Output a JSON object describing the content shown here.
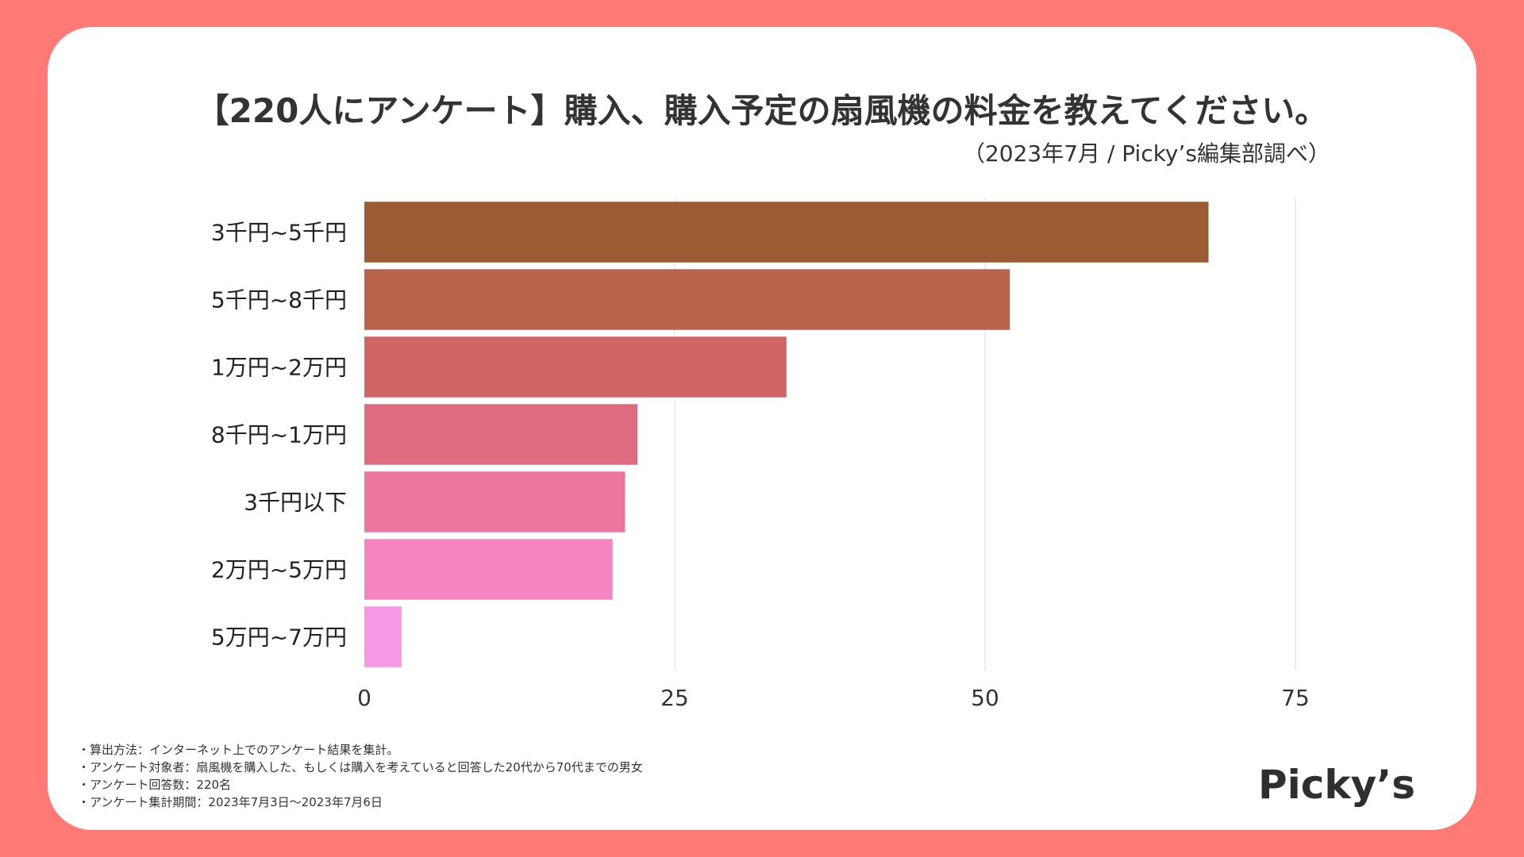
{
  "title": "【220人にアンケート】購入、購入予定の扇風機の料金を教えてください。",
  "subtitle": "（2023年7月 / Picky’s編集部調べ）",
  "notes": [
    "・算出方法：インターネット上でのアンケート結果を集計。",
    "・アンケート対象者：扇風機を購入した、もしくは購入を考えていると回答した20代から70代までの男女",
    "・アンケート回答数：220名",
    "・アンケート集計期間：2023年7月3日〜2023年7月6日"
  ],
  "logo": "Picky’s",
  "colors": {
    "background": "#ff7a74",
    "card": "#ffffff",
    "grid": "#e6e6e6",
    "text": "#333333"
  },
  "chart_data": {
    "type": "bar",
    "orientation": "horizontal",
    "title": "【220人にアンケート】購入、購入予定の扇風機の料金を教えてください。",
    "categories": [
      "3千円~5千円",
      "5千円~8千円",
      "1万円~2万円",
      "8千円~1万円",
      "3千円以下",
      "2万円~5万円",
      "5万円~7万円"
    ],
    "values": [
      68,
      52,
      34,
      22,
      21,
      20,
      3
    ],
    "bar_colors": [
      "#9c5b33",
      "#b9634d",
      "#cf6565",
      "#df6b80",
      "#ec76a0",
      "#f585c2",
      "#f798e6"
    ],
    "xlim": [
      0,
      75
    ],
    "xticks": [
      0,
      25,
      50,
      75
    ],
    "xlabel": "",
    "ylabel": "",
    "grid": true
  }
}
